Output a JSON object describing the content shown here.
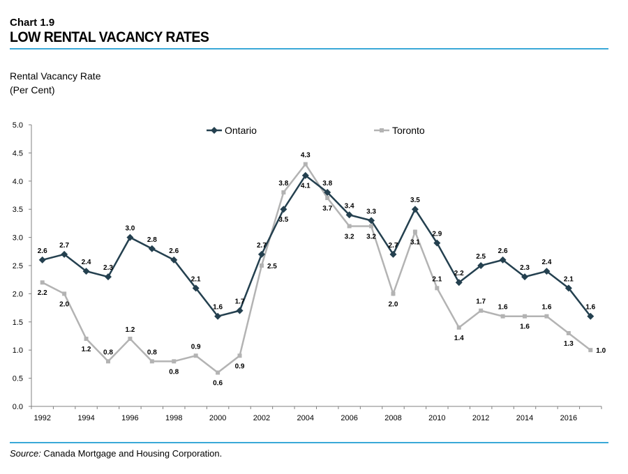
{
  "header": {
    "chart_number": "Chart 1.9",
    "title": "LOW RENTAL VACANCY RATES"
  },
  "y_axis_label": {
    "line1": "Rental Vacancy Rate",
    "line2": "(Per Cent)"
  },
  "source": {
    "prefix": "Source:",
    "text": " Canada Mortgage and Housing Corporation."
  },
  "colors": {
    "ontario": "#24404f",
    "toronto": "#b3b3b3",
    "rule": "#3aa8d8",
    "axis": "#808080"
  },
  "chart_data": {
    "type": "line",
    "title": "LOW RENTAL VACANCY RATES",
    "xlabel": "",
    "ylabel": "Rental Vacancy Rate (Per Cent)",
    "ylim": [
      0,
      5
    ],
    "yticks": [
      "0.0",
      "0.5",
      "1.0",
      "1.5",
      "2.0",
      "2.5",
      "3.0",
      "3.5",
      "4.0",
      "4.5",
      "5.0"
    ],
    "xticks": [
      "1992",
      "1994",
      "1996",
      "1998",
      "2000",
      "2002",
      "2004",
      "2006",
      "2008",
      "2010",
      "2012",
      "2014",
      "2016"
    ],
    "x": [
      1992,
      1993,
      1994,
      1995,
      1996,
      1997,
      1998,
      1999,
      2000,
      2001,
      2002,
      2003,
      2004,
      2005,
      2006,
      2007,
      2008,
      2009,
      2010,
      2011,
      2012,
      2013,
      2014,
      2015,
      2016,
      2017
    ],
    "series": [
      {
        "name": "Ontario",
        "values": [
          2.6,
          2.7,
          2.4,
          2.3,
          3.0,
          2.8,
          2.6,
          2.1,
          1.6,
          1.7,
          2.7,
          3.5,
          4.1,
          3.8,
          3.4,
          3.3,
          2.7,
          3.5,
          2.9,
          2.2,
          2.5,
          2.6,
          2.3,
          2.4,
          2.1,
          1.6
        ],
        "labels": [
          "2.6",
          "2.7",
          "2.4",
          "2.3",
          "3.0",
          "2.8",
          "2.6",
          "2.1",
          "1.6",
          "1.7",
          "2.7",
          "3.5",
          "4.1",
          "3.8",
          "3.4",
          "3.3",
          "2.7",
          "3.5",
          "2.9",
          "2.2",
          "2.5",
          "2.6",
          "2.3",
          "2.4",
          "2.1",
          "1.6"
        ]
      },
      {
        "name": "Toronto",
        "values": [
          2.2,
          2.0,
          1.2,
          0.8,
          1.2,
          0.8,
          0.8,
          0.9,
          0.6,
          0.9,
          2.5,
          3.8,
          4.3,
          3.7,
          3.2,
          3.2,
          2.0,
          3.1,
          2.1,
          1.4,
          1.7,
          1.6,
          1.6,
          1.6,
          1.3,
          1.0
        ],
        "labels": [
          "2.2",
          "2.0",
          "1.2",
          "0.8",
          "1.2",
          "0.8",
          "0.8",
          "0.9",
          "0.6",
          "0.9",
          "2.5",
          "3.8",
          "4.3",
          "3.7",
          "3.2",
          "3.2",
          "2.0",
          "3.1",
          "2.1",
          "1.4",
          "1.7",
          "1.6",
          "1.6",
          "1.6",
          "1.3",
          "1.0"
        ]
      }
    ],
    "legend": [
      "Ontario",
      "Toronto"
    ],
    "legend_position": "top",
    "grid": false
  }
}
